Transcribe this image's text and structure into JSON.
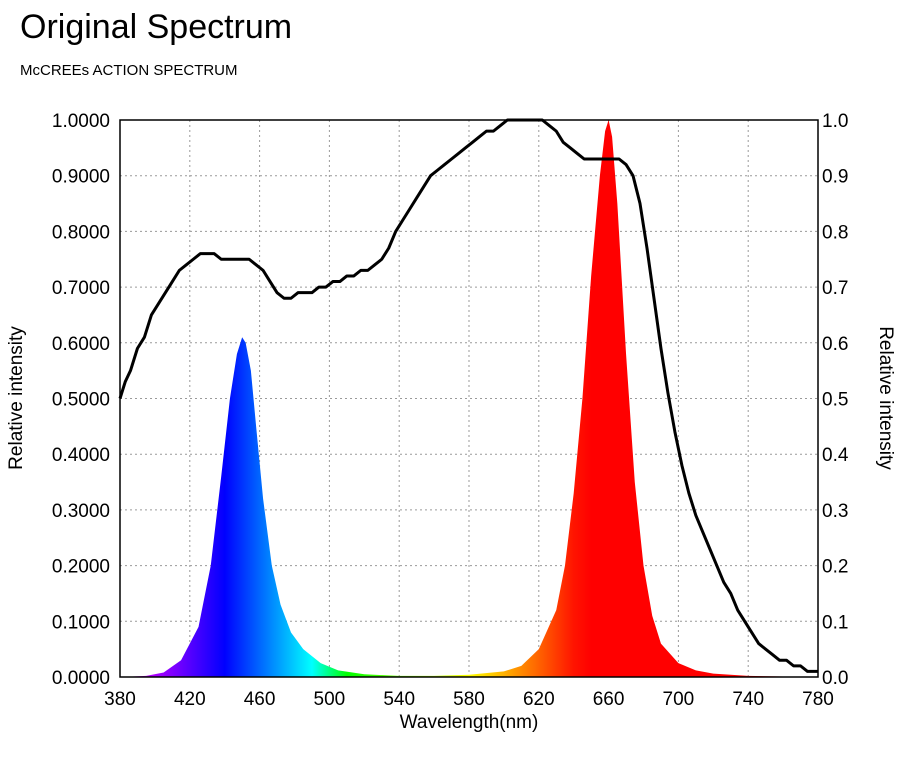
{
  "header": {
    "title": "Original Spectrum",
    "subtitle": "McCREEs ACTION SPECTRUM"
  },
  "chart_data": {
    "type": "area",
    "xlabel": "Wavelength(nm)",
    "ylabel": "Relative intensity",
    "ylabel_right": "Relative intensity",
    "xlim": [
      380,
      780
    ],
    "ylim": [
      0,
      1
    ],
    "grid": true,
    "x_ticks": [
      "380",
      "420",
      "460",
      "500",
      "540",
      "580",
      "620",
      "660",
      "700",
      "740",
      "780"
    ],
    "y_ticks_left": [
      "0.0000",
      "0.1000",
      "0.2000",
      "0.3000",
      "0.4000",
      "0.5000",
      "0.6000",
      "0.7000",
      "0.8000",
      "0.9000",
      "1.0000"
    ],
    "y_ticks_right": [
      "0.0",
      "0.1",
      "0.2",
      "0.3",
      "0.4",
      "0.5",
      "0.6",
      "0.7",
      "0.8",
      "0.9",
      "1.0"
    ],
    "series": [
      {
        "kind": "led-spectrum",
        "fill": "wavelength-rainbow",
        "x": [
          380,
          395,
          405,
          415,
          425,
          432,
          438,
          443,
          447,
          450,
          452,
          455,
          458,
          462,
          467,
          472,
          478,
          485,
          495,
          505,
          520,
          540,
          560,
          580,
          600,
          610,
          620,
          630,
          635,
          640,
          645,
          650,
          655,
          658,
          660,
          662,
          665,
          670,
          675,
          680,
          685,
          690,
          700,
          710,
          720,
          740,
          760,
          780
        ],
        "y": [
          0,
          0.002,
          0.008,
          0.03,
          0.09,
          0.2,
          0.36,
          0.5,
          0.58,
          0.61,
          0.6,
          0.55,
          0.45,
          0.32,
          0.2,
          0.13,
          0.08,
          0.05,
          0.025,
          0.012,
          0.005,
          0.002,
          0.002,
          0.004,
          0.01,
          0.02,
          0.05,
          0.12,
          0.2,
          0.33,
          0.5,
          0.72,
          0.9,
          0.98,
          1.0,
          0.97,
          0.85,
          0.58,
          0.35,
          0.2,
          0.11,
          0.06,
          0.025,
          0.012,
          0.006,
          0.002,
          0.001,
          0
        ]
      },
      {
        "kind": "mccree-action-spectrum",
        "color": "#000000",
        "x": [
          380,
          383,
          386,
          390,
          394,
          398,
          402,
          406,
          410,
          414,
          418,
          422,
          426,
          430,
          434,
          438,
          442,
          446,
          450,
          454,
          458,
          462,
          466,
          470,
          474,
          478,
          482,
          486,
          490,
          494,
          498,
          502,
          506,
          510,
          514,
          518,
          522,
          526,
          530,
          534,
          538,
          542,
          546,
          550,
          554,
          558,
          562,
          566,
          570,
          574,
          578,
          582,
          586,
          590,
          594,
          598,
          602,
          606,
          610,
          614,
          618,
          622,
          626,
          630,
          634,
          638,
          642,
          646,
          650,
          654,
          658,
          662,
          666,
          670,
          674,
          678,
          682,
          686,
          690,
          694,
          698,
          702,
          706,
          710,
          714,
          718,
          722,
          726,
          730,
          734,
          738,
          742,
          746,
          750,
          754,
          758,
          762,
          766,
          770,
          774,
          778,
          780
        ],
        "y": [
          0.5,
          0.53,
          0.55,
          0.59,
          0.61,
          0.65,
          0.67,
          0.69,
          0.71,
          0.73,
          0.74,
          0.75,
          0.76,
          0.76,
          0.76,
          0.75,
          0.75,
          0.75,
          0.75,
          0.75,
          0.74,
          0.73,
          0.71,
          0.69,
          0.68,
          0.68,
          0.69,
          0.69,
          0.69,
          0.7,
          0.7,
          0.71,
          0.71,
          0.72,
          0.72,
          0.73,
          0.73,
          0.74,
          0.75,
          0.77,
          0.8,
          0.82,
          0.84,
          0.86,
          0.88,
          0.9,
          0.91,
          0.92,
          0.93,
          0.94,
          0.95,
          0.96,
          0.97,
          0.98,
          0.98,
          0.99,
          1.0,
          1.0,
          1.0,
          1.0,
          1.0,
          1.0,
          0.99,
          0.98,
          0.96,
          0.95,
          0.94,
          0.93,
          0.93,
          0.93,
          0.93,
          0.93,
          0.93,
          0.92,
          0.9,
          0.85,
          0.77,
          0.68,
          0.59,
          0.51,
          0.44,
          0.38,
          0.33,
          0.29,
          0.26,
          0.23,
          0.2,
          0.17,
          0.15,
          0.12,
          0.1,
          0.08,
          0.06,
          0.05,
          0.04,
          0.03,
          0.03,
          0.02,
          0.02,
          0.01,
          0.01,
          0.01
        ]
      }
    ]
  }
}
